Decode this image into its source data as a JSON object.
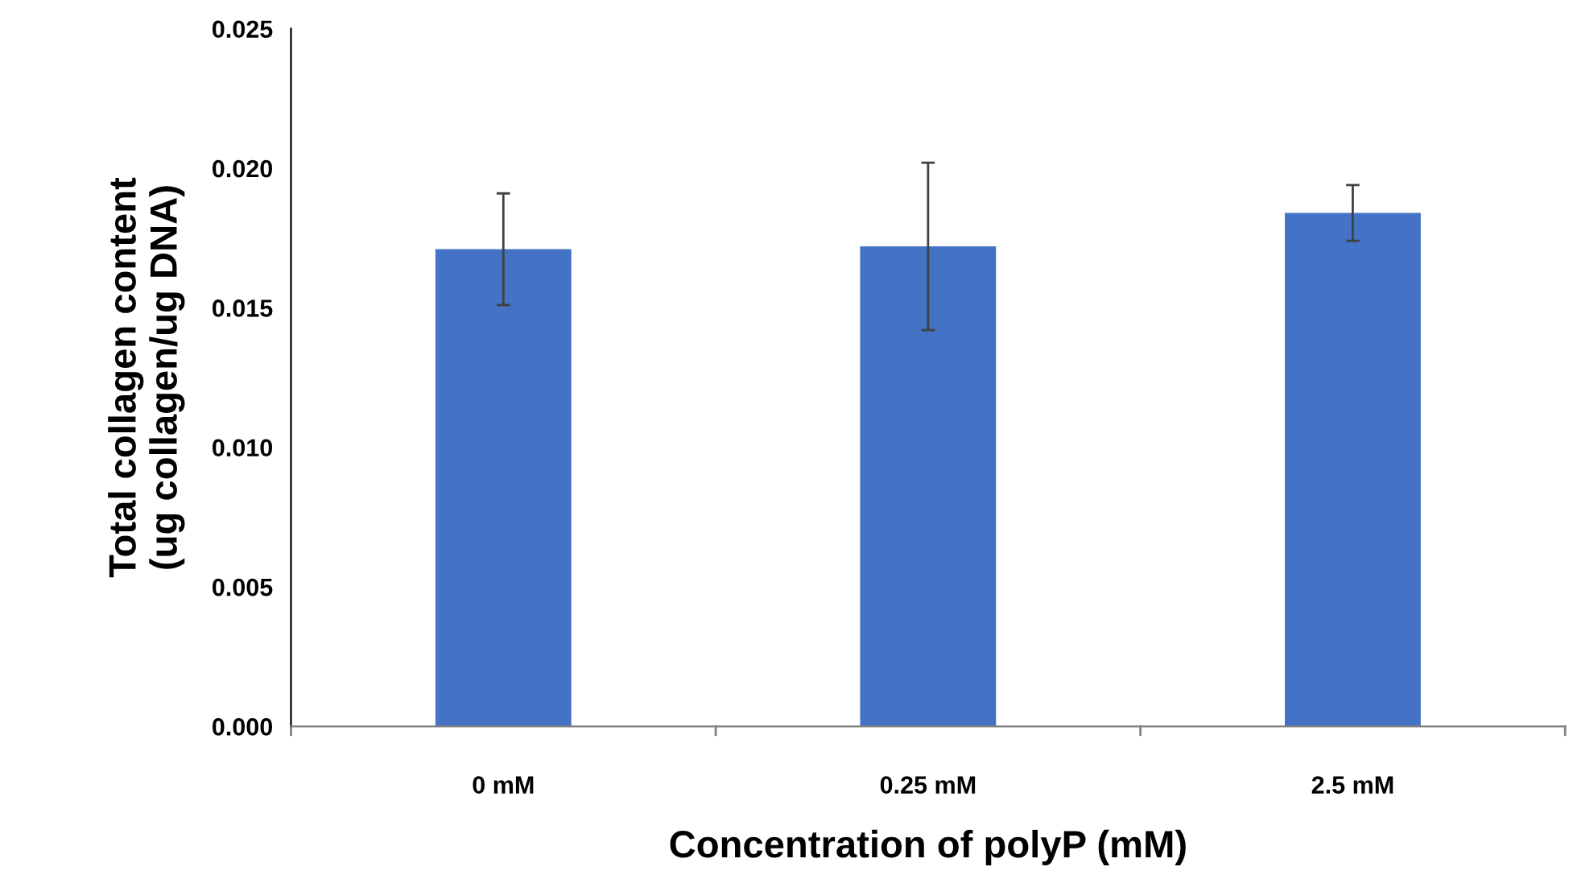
{
  "chart_data": {
    "type": "bar",
    "xlabel": "Concentration of polyP (mM)",
    "ylabel": "Total collagen content\n(ug collagen/ug DNA)",
    "categories": [
      "0 mM",
      "0.25 mM",
      "2.5 mM"
    ],
    "values": [
      0.0171,
      0.0172,
      0.0184
    ],
    "errors": [
      0.002,
      0.003,
      0.001
    ],
    "color": "#4472c4",
    "ylim": [
      0,
      0.025
    ],
    "yticks": [
      {
        "value": 0,
        "label": "0.000"
      },
      {
        "value": 0.005,
        "label": "0.005"
      },
      {
        "value": 0.01,
        "label": "0.010"
      },
      {
        "value": 0.015,
        "label": "0.015"
      },
      {
        "value": 0.02,
        "label": "0.020"
      },
      {
        "value": 0.025,
        "label": "0.025"
      }
    ],
    "grid": false,
    "legend": false
  }
}
